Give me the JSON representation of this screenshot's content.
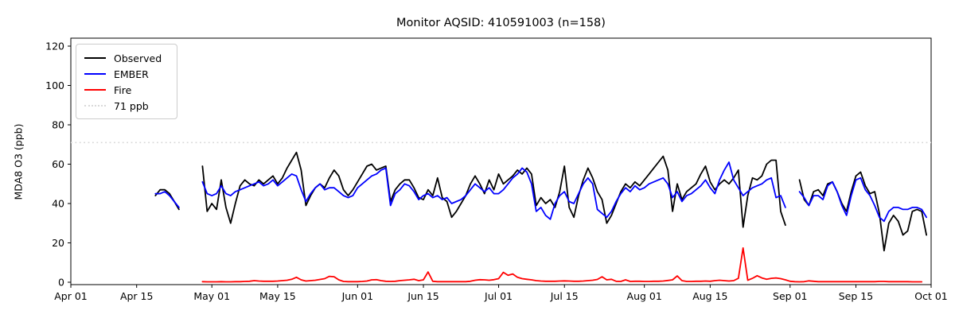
{
  "title": "Monitor AQSID: 410591003 (n=158)",
  "axes": {
    "ylabel": "MDA8 O3 (ppb)",
    "yticks": [
      0,
      20,
      40,
      60,
      80,
      100,
      120
    ],
    "xtick_labels": [
      "Apr 01",
      "Apr 15",
      "May 01",
      "May 15",
      "Jun 01",
      "Jun 15",
      "Jul 01",
      "Jul 15",
      "Aug 01",
      "Aug 15",
      "Sep 01",
      "Sep 15",
      "Oct 01"
    ]
  },
  "legend": {
    "items": [
      {
        "label": "Observed",
        "color": "#000000",
        "style": "solid"
      },
      {
        "label": "EMBER",
        "color": "#0000ff",
        "style": "solid"
      },
      {
        "label": "Fire",
        "color": "#ff0000",
        "style": "solid"
      },
      {
        "label": "71 ppb",
        "color": "#d9d9d9",
        "style": "dotted"
      }
    ]
  },
  "chart_data": {
    "type": "line",
    "title": "Monitor AQSID: 410591003 (n=158)",
    "xlabel": "",
    "ylabel": "MDA8 O3 (ppb)",
    "ylim": [
      -2,
      124
    ],
    "x_range": [
      "Apr 01",
      "Oct 01"
    ],
    "grid": false,
    "legend_position": "upper left",
    "reference_line": {
      "label": "71 ppb",
      "value": 71,
      "style": "dotted",
      "color": "#d9d9d9"
    },
    "x": [
      "Apr 19",
      "Apr 20",
      "Apr 21",
      "Apr 22",
      "Apr 23",
      "Apr 24",
      "Apr 25",
      "Apr 26",
      "Apr 27",
      "Apr 28",
      "Apr 29",
      "Apr 30",
      "May 01",
      "May 02",
      "May 03",
      "May 04",
      "May 05",
      "May 06",
      "May 07",
      "May 08",
      "May 09",
      "May 10",
      "May 11",
      "May 12",
      "May 13",
      "May 14",
      "May 15",
      "May 16",
      "May 17",
      "May 18",
      "May 19",
      "May 20",
      "May 21",
      "May 22",
      "May 23",
      "May 24",
      "May 25",
      "May 26",
      "May 27",
      "May 28",
      "May 29",
      "May 30",
      "May 31",
      "Jun 01",
      "Jun 02",
      "Jun 03",
      "Jun 04",
      "Jun 05",
      "Jun 06",
      "Jun 07",
      "Jun 08",
      "Jun 09",
      "Jun 10",
      "Jun 11",
      "Jun 12",
      "Jun 13",
      "Jun 14",
      "Jun 15",
      "Jun 16",
      "Jun 17",
      "Jun 18",
      "Jun 19",
      "Jun 20",
      "Jun 21",
      "Jun 22",
      "Jun 23",
      "Jun 24",
      "Jun 25",
      "Jun 26",
      "Jun 27",
      "Jun 28",
      "Jun 29",
      "Jun 30",
      "Jul 01",
      "Jul 02",
      "Jul 03",
      "Jul 04",
      "Jul 05",
      "Jul 06",
      "Jul 07",
      "Jul 08",
      "Jul 09",
      "Jul 10",
      "Jul 11",
      "Jul 12",
      "Jul 13",
      "Jul 14",
      "Jul 15",
      "Jul 16",
      "Jul 17",
      "Jul 18",
      "Jul 19",
      "Jul 20",
      "Jul 21",
      "Jul 22",
      "Jul 23",
      "Jul 24",
      "Jul 25",
      "Jul 26",
      "Jul 27",
      "Jul 28",
      "Jul 29",
      "Jul 30",
      "Jul 31",
      "Aug 01",
      "Aug 02",
      "Aug 03",
      "Aug 04",
      "Aug 05",
      "Aug 06",
      "Aug 07",
      "Aug 08",
      "Aug 09",
      "Aug 10",
      "Aug 11",
      "Aug 12",
      "Aug 13",
      "Aug 14",
      "Aug 15",
      "Aug 16",
      "Aug 17",
      "Aug 18",
      "Aug 19",
      "Aug 20",
      "Aug 21",
      "Aug 22",
      "Aug 23",
      "Aug 24",
      "Aug 25",
      "Aug 26",
      "Aug 27",
      "Aug 28",
      "Aug 29",
      "Aug 30",
      "Aug 31",
      "Sep 01",
      "Sep 02",
      "Sep 03",
      "Sep 04",
      "Sep 05",
      "Sep 06",
      "Sep 07",
      "Sep 08",
      "Sep 09",
      "Sep 10",
      "Sep 11",
      "Sep 12",
      "Sep 13",
      "Sep 14",
      "Sep 15",
      "Sep 16",
      "Sep 17",
      "Sep 18",
      "Sep 19",
      "Sep 20",
      "Sep 21",
      "Sep 22",
      "Sep 23",
      "Sep 24",
      "Sep 25",
      "Sep 26",
      "Sep 27",
      "Sep 28",
      "Sep 29",
      "Sep 30"
    ],
    "series": [
      {
        "name": "Observed",
        "color": "#000000",
        "values": [
          44,
          47,
          47,
          45,
          41,
          37,
          null,
          null,
          null,
          null,
          59,
          36,
          40,
          37,
          52,
          38,
          30,
          40,
          49,
          52,
          50,
          49,
          52,
          50,
          52,
          54,
          50,
          53,
          58,
          62,
          66,
          57,
          39,
          44,
          48,
          50,
          48,
          53,
          57,
          54,
          47,
          44,
          47,
          51,
          55,
          59,
          60,
          57,
          58,
          59,
          41,
          47,
          50,
          52,
          52,
          48,
          43,
          42,
          47,
          44,
          53,
          43,
          41,
          33,
          36,
          40,
          44,
          50,
          54,
          50,
          45,
          52,
          47,
          55,
          50,
          52,
          54,
          57,
          55,
          58,
          55,
          39,
          43,
          40,
          42,
          38,
          46,
          59,
          38,
          33,
          44,
          52,
          58,
          53,
          46,
          42,
          30,
          34,
          40,
          46,
          50,
          48,
          51,
          49,
          52,
          55,
          58,
          61,
          64,
          57,
          36,
          50,
          42,
          46,
          48,
          50,
          55,
          59,
          51,
          47,
          50,
          52,
          50,
          53,
          57,
          28,
          44,
          53,
          52,
          54,
          60,
          62,
          62,
          36,
          29,
          null,
          null,
          52,
          42,
          39,
          46,
          47,
          44,
          50,
          51,
          46,
          40,
          36,
          46,
          54,
          56,
          49,
          45,
          46,
          35,
          16,
          30,
          34,
          31,
          24,
          26,
          36,
          37,
          36,
          24
        ]
      },
      {
        "name": "EMBER",
        "color": "#0000ff",
        "values": [
          45,
          45,
          46,
          44,
          41,
          38,
          null,
          null,
          null,
          null,
          51,
          45,
          44,
          45,
          49,
          45,
          44,
          46,
          47,
          48,
          49,
          50,
          51,
          49,
          50,
          52,
          49,
          51,
          53,
          55,
          54,
          47,
          41,
          45,
          48,
          50,
          47,
          48,
          48,
          46,
          44,
          43,
          44,
          48,
          50,
          52,
          54,
          55,
          57,
          58,
          39,
          45,
          47,
          50,
          49,
          46,
          42,
          44,
          45,
          43,
          44,
          42,
          43,
          40,
          41,
          42,
          44,
          47,
          50,
          48,
          46,
          48,
          45,
          45,
          47,
          50,
          53,
          55,
          58,
          56,
          50,
          36,
          38,
          34,
          32,
          40,
          44,
          46,
          41,
          40,
          45,
          50,
          53,
          50,
          37,
          35,
          33,
          36,
          41,
          45,
          48,
          46,
          49,
          47,
          48,
          50,
          51,
          52,
          53,
          50,
          43,
          46,
          41,
          44,
          45,
          47,
          49,
          52,
          48,
          45,
          52,
          57,
          61,
          52,
          48,
          44,
          46,
          48,
          49,
          50,
          52,
          53,
          43,
          44,
          38,
          null,
          null,
          46,
          43,
          39,
          44,
          44,
          42,
          49,
          51,
          46,
          39,
          34,
          44,
          52,
          53,
          47,
          44,
          39,
          33,
          31,
          36,
          38,
          38,
          37,
          37,
          38,
          38,
          37,
          33
        ]
      },
      {
        "name": "Fire",
        "color": "#ff0000",
        "values": [
          null,
          null,
          null,
          null,
          null,
          null,
          null,
          null,
          null,
          null,
          0.3,
          0.2,
          0.2,
          0.2,
          0.3,
          0.2,
          0.2,
          0.3,
          0.3,
          0.4,
          0.5,
          0.8,
          0.6,
          0.5,
          0.5,
          0.5,
          0.6,
          0.8,
          1.0,
          1.5,
          2.5,
          1.2,
          0.6,
          0.8,
          1.0,
          1.4,
          1.8,
          3.0,
          2.8,
          1.2,
          0.4,
          0.3,
          0.3,
          0.3,
          0.4,
          0.6,
          1.2,
          1.3,
          0.8,
          0.5,
          0.4,
          0.5,
          0.8,
          1.0,
          1.2,
          1.5,
          0.8,
          1.2,
          5.2,
          0.5,
          0.3,
          0.3,
          0.3,
          0.3,
          0.3,
          0.3,
          0.3,
          0.5,
          1.0,
          1.3,
          1.2,
          1.0,
          1.3,
          1.8,
          5.0,
          3.5,
          4.2,
          2.5,
          1.8,
          1.5,
          1.2,
          0.8,
          0.6,
          0.5,
          0.5,
          0.5,
          0.6,
          0.7,
          0.6,
          0.5,
          0.5,
          0.6,
          0.8,
          1.0,
          1.4,
          2.8,
          1.2,
          1.5,
          0.5,
          0.4,
          1.2,
          0.4,
          0.5,
          0.5,
          0.4,
          0.4,
          0.5,
          0.5,
          0.6,
          0.9,
          1.2,
          3.2,
          0.8,
          0.4,
          0.4,
          0.5,
          0.5,
          0.6,
          0.5,
          0.8,
          1.0,
          0.8,
          0.6,
          0.8,
          2.0,
          17.4,
          1.0,
          2.0,
          3.3,
          2.2,
          1.5,
          2.0,
          2.2,
          1.8,
          1.2,
          0.5,
          0.3,
          0.2,
          0.3,
          0.7,
          0.5,
          0.3,
          0.3,
          0.3,
          0.3,
          0.3,
          0.3,
          0.3,
          0.3,
          0.3,
          0.3,
          0.3,
          0.3,
          0.3,
          0.4,
          0.4,
          0.3,
          0.3,
          0.3,
          0.3,
          0.3,
          0.2,
          0.2,
          0.2,
          null
        ]
      }
    ]
  }
}
